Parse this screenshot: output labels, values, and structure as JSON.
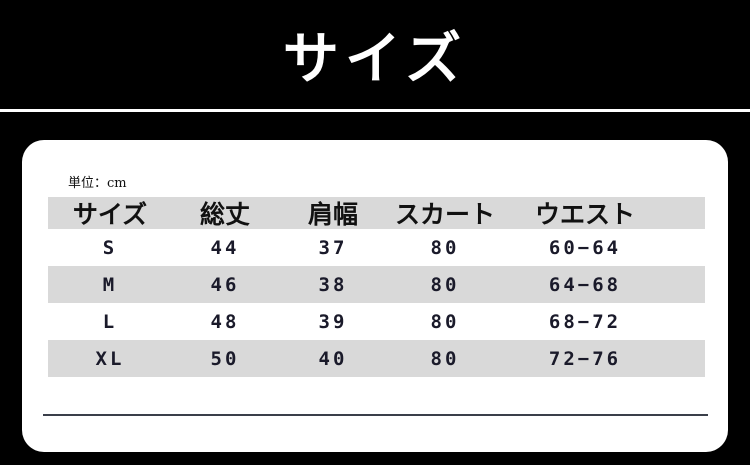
{
  "title": "サイズ",
  "unit_label": "単位：cm",
  "table": {
    "headers": [
      "サイズ",
      "総丈",
      "肩幅",
      "スカート",
      "ウエスト"
    ],
    "rows": [
      [
        "S",
        "44",
        "37",
        "80",
        "60−64"
      ],
      [
        "M",
        "46",
        "38",
        "80",
        "64−68"
      ],
      [
        "L",
        "48",
        "39",
        "80",
        "68−72"
      ],
      [
        "XL",
        "50",
        "40",
        "80",
        "72−76"
      ]
    ]
  },
  "colors": {
    "background": "#000000",
    "card": "#ffffff",
    "stripe": "#d9d9d9"
  }
}
